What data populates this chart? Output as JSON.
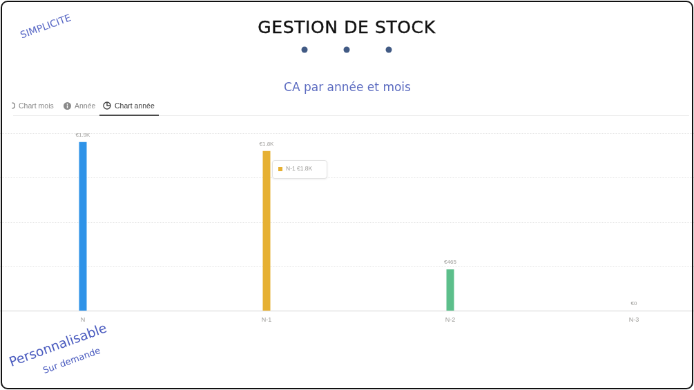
{
  "chart_data": {
    "type": "bar",
    "title": "GESTION DE STOCK",
    "subtitle": "CA par année et mois",
    "categories": [
      "N",
      "N-1",
      "N-2",
      "N-3"
    ],
    "values": [
      1900,
      1800,
      465,
      0
    ],
    "colors": [
      "#2e93e8",
      "#e6b032",
      "#5cbf8b",
      null
    ],
    "value_labels": [
      "€1.9K",
      "€1.8K",
      "€465",
      "€0"
    ],
    "ylim": [
      0,
      2000
    ],
    "yticks": [
      {
        "value": 0,
        "label": null
      },
      {
        "value": 500,
        "label": null
      },
      {
        "value": 1000,
        "label": null
      },
      {
        "value": 1500,
        "label": null
      },
      {
        "value": 2000,
        "label": null
      }
    ],
    "grid": "y",
    "tick_labels": "x",
    "annotations": [
      "SIMPLICITE",
      "Chart mois",
      "Année",
      "Chart année",
      "N-1 €1.8K",
      "Personnalisable",
      "Sur demande"
    ]
  }
}
